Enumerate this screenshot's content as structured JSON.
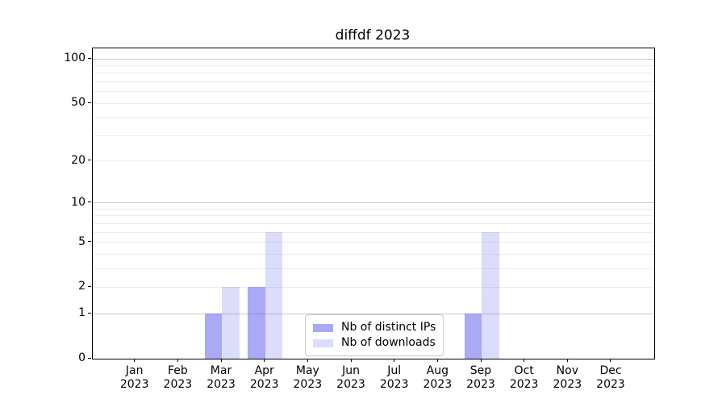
{
  "chart_data": {
    "type": "bar",
    "title": "diffdf 2023",
    "xlabel": "",
    "ylabel": "",
    "yscale": "log1p",
    "ylim": [
      0,
      118
    ],
    "yticks": [
      100,
      50,
      20,
      10,
      5,
      2,
      1,
      0
    ],
    "grid": {
      "major": [
        1,
        10,
        100
      ],
      "minor": [
        2,
        3,
        4,
        5,
        6,
        7,
        8,
        9,
        20,
        30,
        40,
        50,
        60,
        70,
        80,
        90
      ]
    },
    "categories": [
      {
        "month": "Jan",
        "year": "2023"
      },
      {
        "month": "Feb",
        "year": "2023"
      },
      {
        "month": "Mar",
        "year": "2023"
      },
      {
        "month": "Apr",
        "year": "2023"
      },
      {
        "month": "May",
        "year": "2023"
      },
      {
        "month": "Jun",
        "year": "2023"
      },
      {
        "month": "Jul",
        "year": "2023"
      },
      {
        "month": "Aug",
        "year": "2023"
      },
      {
        "month": "Sep",
        "year": "2023"
      },
      {
        "month": "Oct",
        "year": "2023"
      },
      {
        "month": "Nov",
        "year": "2023"
      },
      {
        "month": "Dec",
        "year": "2023"
      }
    ],
    "series": [
      {
        "name": "Nb of distinct IPs",
        "color": "rgba(90,90,235,0.52)",
        "values": [
          0,
          0,
          1,
          2,
          0,
          0,
          0,
          0,
          1,
          0,
          0,
          0
        ]
      },
      {
        "name": "Nb of downloads",
        "color": "rgba(90,90,235,0.21)",
        "values": [
          0,
          0,
          2,
          6,
          0,
          0,
          0,
          0,
          6,
          0,
          0,
          0
        ]
      }
    ],
    "legend_position": "inside lower-center",
    "colors": {
      "major_grid": "#c9c9c9",
      "minor_grid": "#ececec",
      "spine": "#000000",
      "background": "#ffffff"
    }
  }
}
